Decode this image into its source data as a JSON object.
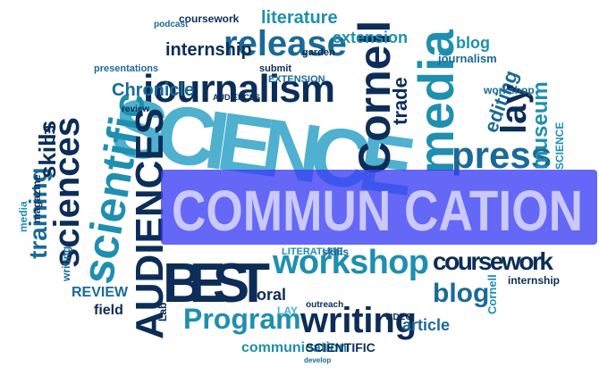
{
  "words": [
    "release",
    "journalism",
    "SCIENCE",
    "Cornell",
    "media",
    "press",
    "scientific",
    "sciences",
    "training",
    "skills",
    "AUDIENCES",
    "BEST",
    "workshop",
    "writing",
    "Program",
    "coursework",
    "blog",
    "Chronicle",
    "internship",
    "extension",
    "editing",
    "literature",
    "lay",
    "museum",
    "trade",
    "REVIEW",
    "field",
    "communication",
    "SCIENTIFIC",
    "article",
    "journalism",
    "blog",
    "garden",
    "coursework",
    "podcast",
    "presentations",
    "workshop",
    "magazine",
    "media",
    "oral",
    "LAY",
    "VIDEO",
    "outreach",
    "internship",
    "Cornell",
    "SCIENCE",
    "ED",
    "submit",
    "EXTENSION",
    "AUDIENCES",
    "review",
    "writing",
    "Lab",
    "develop",
    "LITERATURE",
    "skills"
  ],
  "banner": "COMMUN CATION"
}
